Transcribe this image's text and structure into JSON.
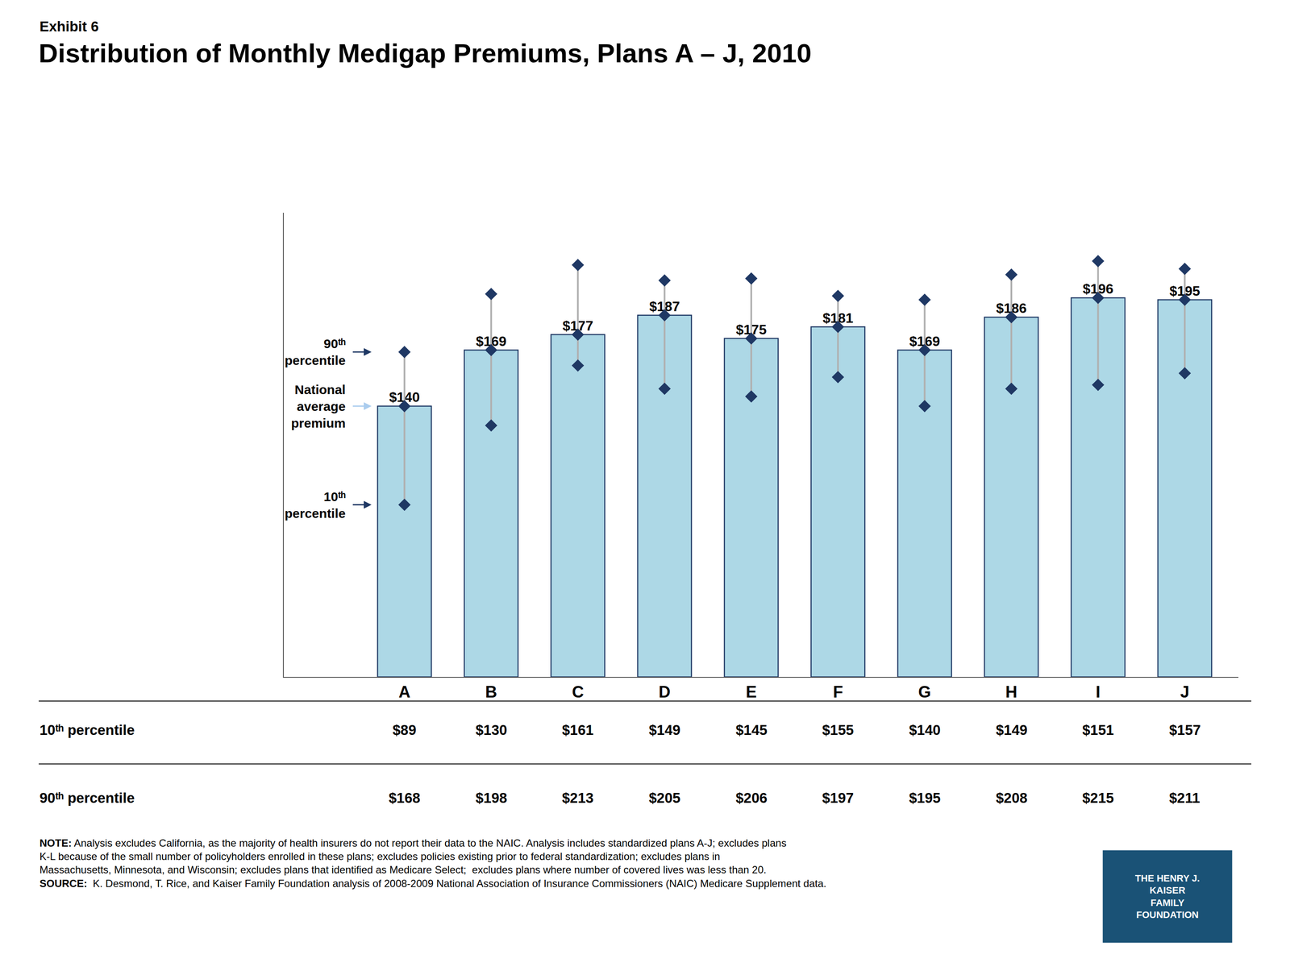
{
  "chart_data": {
    "type": "bar",
    "title": "Distribution of Monthly Medigap Premiums, Plans A – J, 2010",
    "subtitle": "Exhibit 6",
    "categories": [
      "A",
      "B",
      "C",
      "D",
      "E",
      "F",
      "G",
      "H",
      "I",
      "J"
    ],
    "values": [
      140,
      169,
      177,
      187,
      175,
      181,
      169,
      186,
      196,
      195
    ],
    "value_labels": [
      "$140",
      "$169",
      "$177",
      "$187",
      "$175",
      "$181",
      "$169",
      "$186",
      "$196",
      "$195"
    ],
    "p10": [
      89,
      130,
      161,
      149,
      145,
      155,
      140,
      149,
      151,
      157
    ],
    "p10_labels": [
      "$89",
      "$130",
      "$161",
      "$149",
      "$145",
      "$155",
      "$140",
      "$149",
      "$151",
      "$157"
    ],
    "p90": [
      168,
      198,
      213,
      205,
      206,
      197,
      195,
      208,
      215,
      211
    ],
    "p90_labels": [
      "$168",
      "$198",
      "$213",
      "$205",
      "$206",
      "$197",
      "$195",
      "$208",
      "$215",
      "$211"
    ],
    "color": "#add8e6",
    "marker": "diamond",
    "data_labels": true,
    "ylim": [
      0,
      240
    ],
    "tick_labels": "x",
    "grid": false,
    "annotations": [
      [
        "90ᵗʰ",
        "percentile"
      ],
      [
        "National",
        "average",
        "premium"
      ],
      [
        "10ᵗʰ",
        "percentile"
      ],
      [
        "10ᵗʰ percentile"
      ],
      [
        "90ᵗʰ percentile"
      ],
      [
        "NOTE: Analysis excludes California, as the majority of health insurers do not report their data to the NAIC. Analysis includes standardized plans A-J; excludes plans K-L because of the small number of policyholders enrolled in these plans; excludes policies existing prior to federal standardization; excludes plans in Massachusetts, Minnesota, and Wisconsin; excludes plans that identified as Medicare Select;  excludes plans where number of covered lives was less than 20."
      ],
      [
        "SOURCE:  K. Desmond, T. Rice, and Kaiser Family Foundation analysis of 2008-2009 National Association of Insurance Commissioners (NAIC) Medicare Supplement data."
      ],
      [
        "THE HENRY J.",
        "KAISER",
        "FAMILY",
        "FOUNDATION"
      ]
    ]
  }
}
